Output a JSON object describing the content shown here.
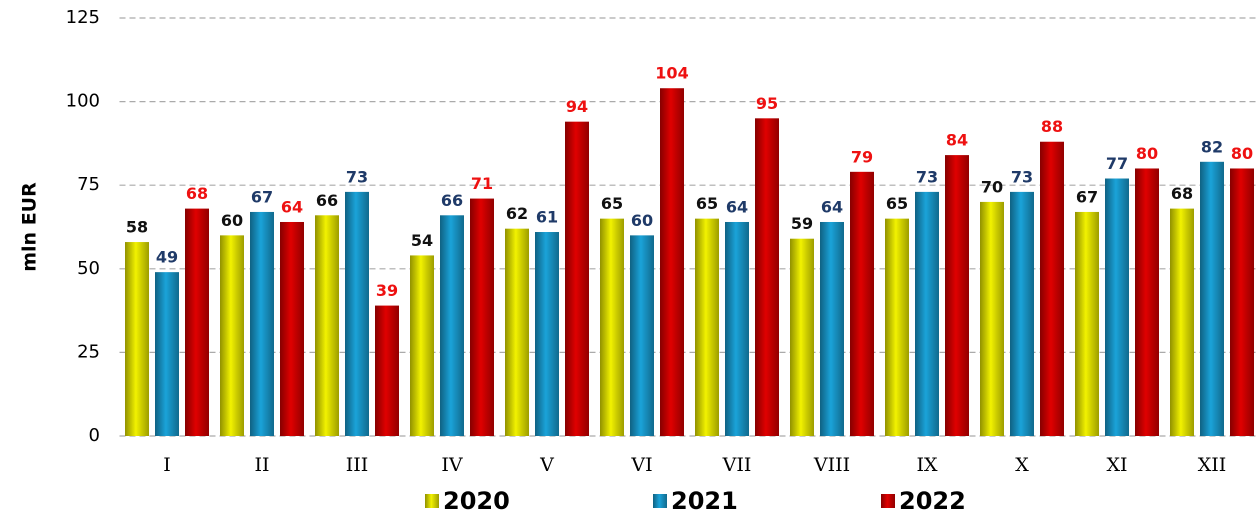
{
  "chart_data": {
    "type": "bar",
    "y_label": "mln EUR",
    "categories": [
      "I",
      "II",
      "III",
      "IV",
      "V",
      "VI",
      "VII",
      "VIII",
      "IX",
      "X",
      "XI",
      "XII"
    ],
    "series": [
      {
        "name": "2020",
        "color": "#f2f200",
        "label_color": "#111111",
        "values": [
          58,
          60,
          66,
          54,
          62,
          65,
          65,
          59,
          65,
          70,
          67,
          68
        ]
      },
      {
        "name": "2021",
        "color": "#1aa3d9",
        "label_color": "#1f3a68",
        "values": [
          49,
          67,
          73,
          66,
          61,
          60,
          64,
          64,
          73,
          73,
          77,
          82
        ]
      },
      {
        "name": "2022",
        "color": "#e00000",
        "label_color": "#ee1111",
        "values": [
          68,
          64,
          39,
          71,
          94,
          104,
          95,
          79,
          84,
          88,
          80,
          80
        ]
      }
    ],
    "ylim": [
      0,
      125
    ],
    "yticks": [
      0,
      25,
      50,
      75,
      100,
      125
    ],
    "grid": true,
    "legend": "bottom"
  }
}
